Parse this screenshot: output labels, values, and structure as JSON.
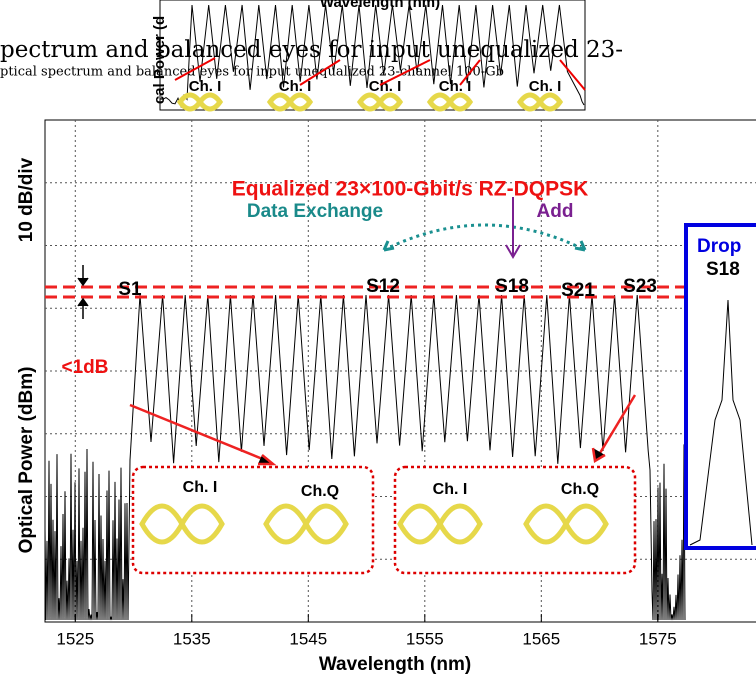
{
  "top_figure": {
    "axis_title": "Wavelength (nm)",
    "y_axis_title": "cal Power (d",
    "caption_large": "pectrum and balanced eyes for input unequalized 23-",
    "caption_small": "ptical spectrum and balanced eyes for input unequalized 23-channel 100-Gb",
    "eye_labels": [
      "Ch. I",
      "Ch. I",
      "Ch. I",
      "Ch. I",
      "Ch. I"
    ]
  },
  "chart_data": {
    "type": "spectrum",
    "x_label": "Wavelength (nm)",
    "y_label": "Optical Power (dBm)",
    "y_scale_label": "10 dB/div",
    "xlim": [
      1522.4,
      1584.2
    ],
    "xticks": [
      1525,
      1535,
      1545,
      1555,
      1565,
      1575
    ],
    "grid": true,
    "title": "Equalized 23×100-Gbit/s RZ-DQPSK",
    "annotations": {
      "data_exchange": "Data Exchange",
      "add": "Add",
      "drop": "Drop",
      "drop_channel": "S18",
      "ripple": "<1dB"
    },
    "channel_labels": [
      "S1",
      "S12",
      "S18",
      "S21",
      "S23"
    ],
    "eye_labels": [
      "Ch. I",
      "Ch.Q",
      "Ch. I",
      "Ch.Q"
    ]
  }
}
